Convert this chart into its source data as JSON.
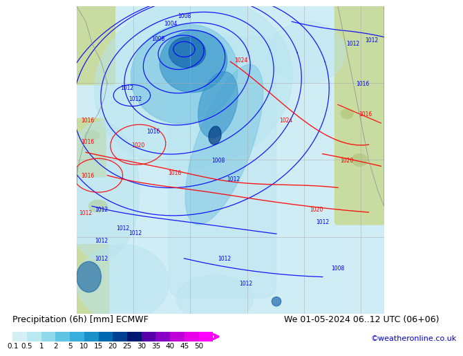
{
  "title_left": "Precipitation (6h) [mm] ECMWF",
  "title_right": "We 01-05-2024 06..12 UTC (06+06)",
  "credit": "©weatheronline.co.uk",
  "colorbar_levels": [
    0.1,
    0.5,
    1,
    2,
    5,
    10,
    15,
    20,
    25,
    30,
    35,
    40,
    45,
    50
  ],
  "colorbar_colors": [
    "#d4f0f5",
    "#b8e8f0",
    "#90d8ec",
    "#60c4e4",
    "#38aedd",
    "#1890c8",
    "#0068b0",
    "#004090",
    "#001870",
    "#5800a8",
    "#8800c8",
    "#c000d8",
    "#e800e8",
    "#ff00ff"
  ],
  "ocean_color": "#d0edf5",
  "land_color": "#c8dba0",
  "land_color2": "#b8cc88",
  "bg_color": "#ffffff",
  "grid_color": "#aaaaaa",
  "title_fontsize": 9,
  "credit_fontsize": 8,
  "colorbar_label_fontsize": 7.5,
  "fig_width": 6.34,
  "fig_height": 4.9,
  "rain_light": "#b8e4f0",
  "rain_medium": "#70c0e0",
  "rain_heavy": "#3090c8",
  "rain_vheavy": "#1060a8",
  "rain_extreme": "#003880"
}
